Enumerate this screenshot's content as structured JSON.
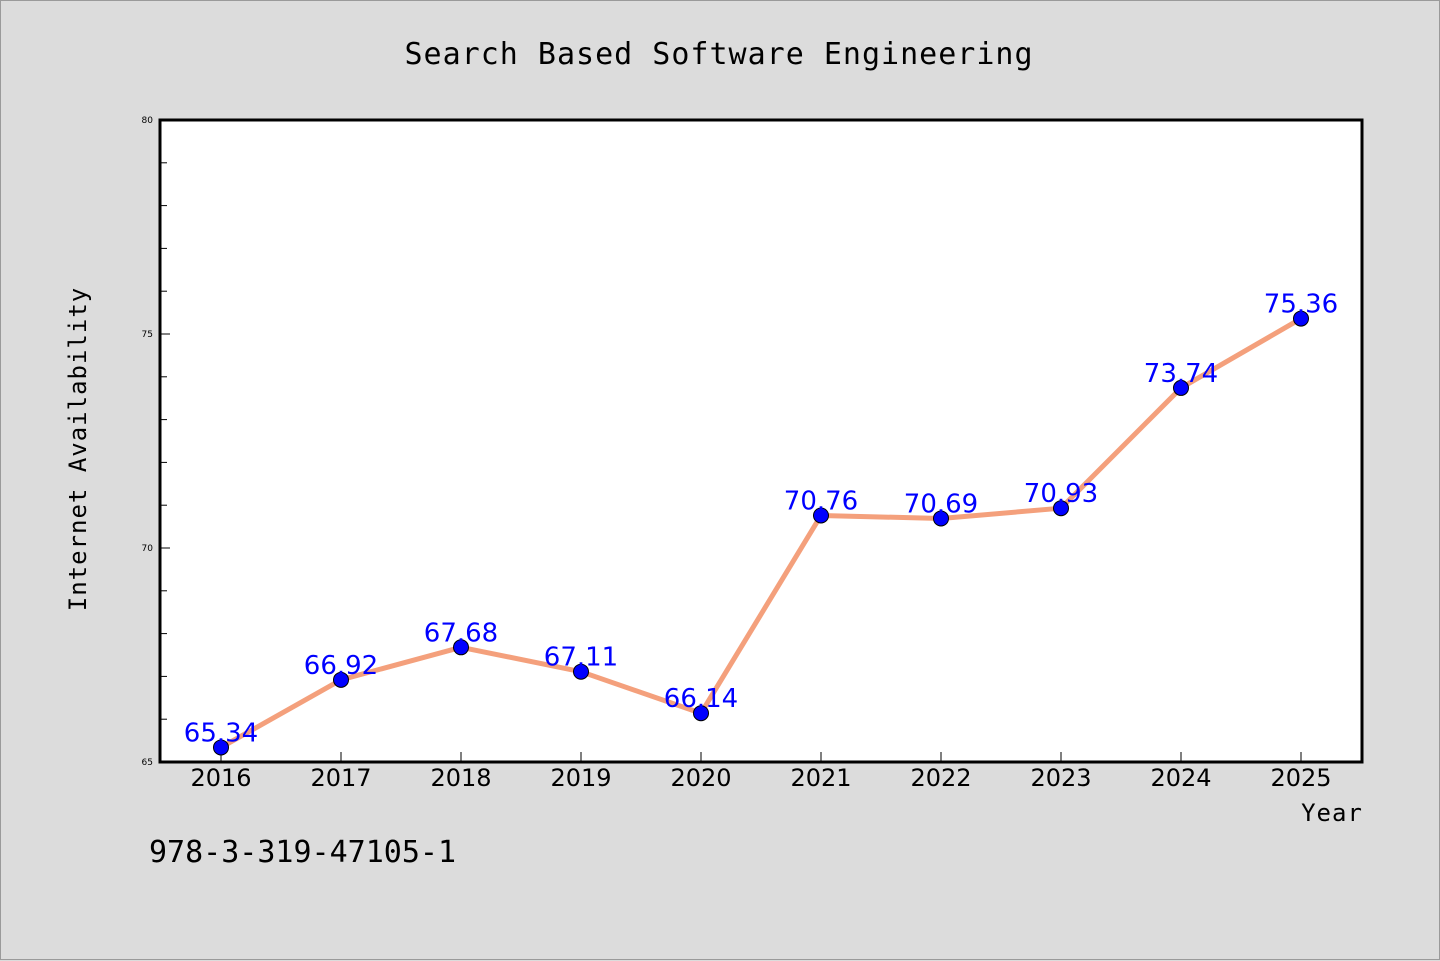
{
  "chart_data": {
    "type": "line",
    "title": "Search Based Software Engineering",
    "xlabel": "Year",
    "ylabel": "Internet Availability",
    "x": [
      "2016",
      "2017",
      "2018",
      "2019",
      "2020",
      "2021",
      "2022",
      "2023",
      "2024",
      "2025"
    ],
    "values": [
      65.34,
      66.92,
      67.68,
      67.11,
      66.14,
      70.76,
      70.69,
      70.93,
      73.74,
      75.36
    ],
    "value_labels": [
      "65.34",
      "66.92",
      "67.68",
      "67.11",
      "66.14",
      "70.76",
      "70.69",
      "70.93",
      "73.74",
      "75.36"
    ],
    "ylim": [
      65,
      80
    ],
    "yticks": [
      "65",
      "70",
      "75",
      "80"
    ],
    "line_color": "#f4a07c",
    "marker_color": "#0000ff",
    "label_color": "#0000ff",
    "grid": false
  },
  "caption": "978-3-319-47105-1"
}
